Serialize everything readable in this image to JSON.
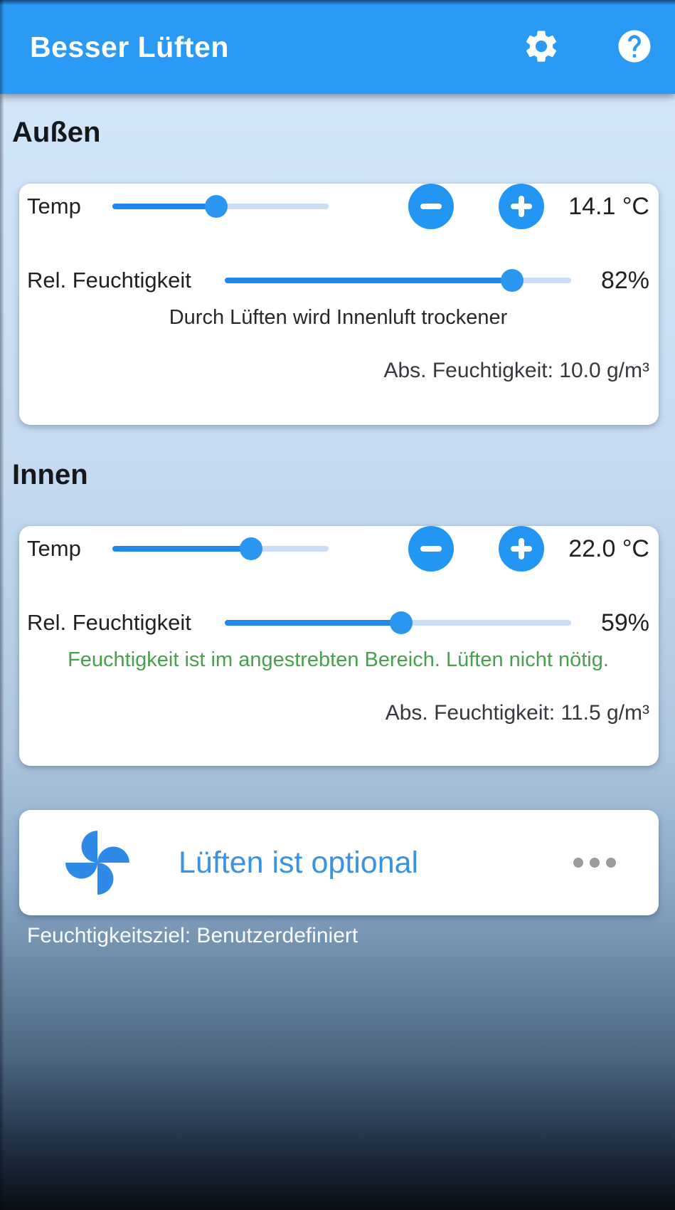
{
  "header": {
    "title": "Besser Lüften"
  },
  "outside": {
    "heading": "Außen",
    "temp_label": "Temp",
    "temp_value": "14.1 °C",
    "temp_slider_pct": 48,
    "humidity_label": "Rel. Feuchtigkeit",
    "humidity_value": "82%",
    "humidity_slider_pct": 83,
    "notice": "Durch Lüften wird Innenluft trockener",
    "abs_humidity": "Abs. Feuchtigkeit: 10.0 g/m³"
  },
  "inside": {
    "heading": "Innen",
    "temp_label": "Temp",
    "temp_value": "22.0 °C",
    "temp_slider_pct": 64,
    "humidity_label": "Rel. Feuchtigkeit",
    "humidity_value": "59%",
    "humidity_slider_pct": 51,
    "notice": "Feuchtigkeit ist im angestrebten Bereich. Lüften nicht nötig.",
    "abs_humidity": "Abs. Feuchtigkeit: 11.5 g/m³"
  },
  "ventilation_card": {
    "title": "Lüften ist optional"
  },
  "footer": {
    "humidity_target": "Feuchtigkeitsziel: Benutzerdefiniert"
  },
  "icons": {
    "settings": "settings-icon",
    "help": "help-icon",
    "fan": "fan-icon",
    "more": "more-options-icon"
  },
  "colors": {
    "header_blue": "#2b9af4",
    "accent_blue": "#2396f3",
    "slider_fill": "#2187e8",
    "slider_track": "#c9def4",
    "ok_green": "#47a14c",
    "link_blue": "#3992e2"
  }
}
